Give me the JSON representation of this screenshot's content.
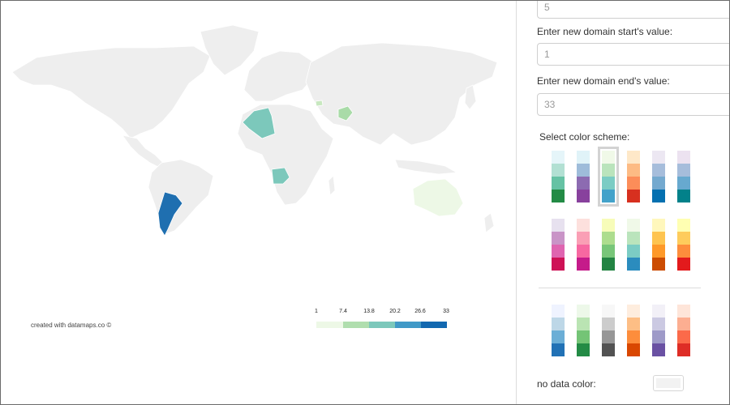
{
  "map": {
    "credit": "created with datamaps.co ©",
    "base_color": "#eeeeee",
    "border_color": "#ffffff",
    "highlights": [
      {
        "country": "Argentina",
        "color": "#1f6fb0"
      },
      {
        "country": "Algeria",
        "color": "#7cc8bb"
      },
      {
        "country": "Angola",
        "color": "#7cc8bb"
      },
      {
        "country": "Afghanistan",
        "color": "#a9dba8"
      },
      {
        "country": "Armenia",
        "color": "#c8e8c0"
      },
      {
        "country": "Australia",
        "color": "#edf8e6"
      }
    ],
    "legend": {
      "labels": [
        "1",
        "7.4",
        "13.8",
        "20.2",
        "26.6",
        "33"
      ],
      "colors": [
        "#edf8e6",
        "#b0deae",
        "#7cc8bb",
        "#4099c7",
        "#1268b0"
      ]
    }
  },
  "panel": {
    "top_input": {
      "value": "5"
    },
    "start": {
      "label": "Enter new domain start's value:",
      "value": "1"
    },
    "end": {
      "label": "Enter new domain end's value:",
      "value": "33"
    },
    "scheme_title": "Select color scheme:",
    "selected_scheme": 2,
    "schemes": [
      [
        "#e5f5f9",
        "#b2e0d3",
        "#66c2a4",
        "#238b45"
      ],
      [
        "#e0f3f8",
        "#9ebcda",
        "#8c6bb1",
        "#88419d"
      ],
      [
        "#f0f9e8",
        "#bae4bc",
        "#7bccc4",
        "#43a2ca"
      ],
      [
        "#fee8c8",
        "#fdbb84",
        "#fc8d59",
        "#d7301f"
      ],
      [
        "#ece7f2",
        "#a6bddb",
        "#74a9cf",
        "#0570b0"
      ],
      [
        "#ece2f0",
        "#a6bddb",
        "#67a9cf",
        "#02818a"
      ],
      [
        "#e7e1ef",
        "#c994c7",
        "#df65b0",
        "#ce1256"
      ],
      [
        "#fde0dd",
        "#fa9fb5",
        "#f768a1",
        "#c51b8a"
      ],
      [
        "#f7fcb9",
        "#addd8e",
        "#78c679",
        "#238443"
      ],
      [
        "#f0f9e8",
        "#bae4bc",
        "#7bccc4",
        "#2b8cbe"
      ],
      [
        "#fff7bc",
        "#fec44f",
        "#fe9929",
        "#cc4c02"
      ],
      [
        "#ffffb2",
        "#fecc5c",
        "#fd8d3c",
        "#e31a1c"
      ],
      [
        "#eff3ff",
        "#bdd7e7",
        "#6baed6",
        "#2171b5"
      ],
      [
        "#edf8e9",
        "#bae4b3",
        "#74c476",
        "#238b45"
      ],
      [
        "#f7f7f7",
        "#cccccc",
        "#969696",
        "#525252"
      ],
      [
        "#feedde",
        "#fdbe85",
        "#fd8d3c",
        "#d94701"
      ],
      [
        "#f2f0f7",
        "#cbc9e2",
        "#9e9ac8",
        "#6a51a3"
      ],
      [
        "#fee5d9",
        "#fcae91",
        "#fb6a4a",
        "#de2d26"
      ]
    ],
    "no_data": {
      "label": "no data color:",
      "color": "#f2f2f2"
    }
  }
}
